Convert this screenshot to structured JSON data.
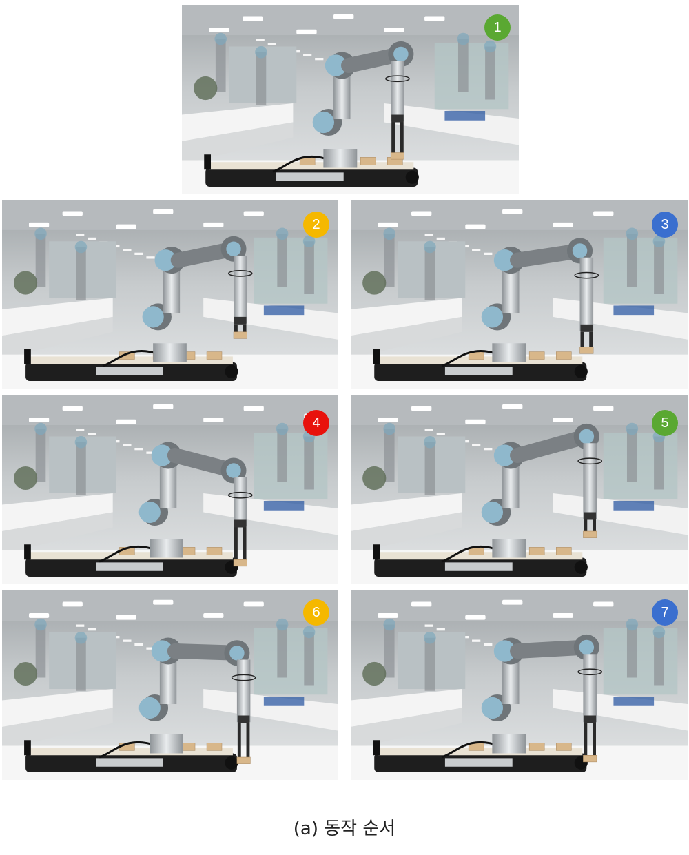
{
  "caption": "(a) 동작 순서",
  "panels": [
    {
      "number": "1",
      "badge_color": "#5aa832"
    },
    {
      "number": "2",
      "badge_color": "#f5b800"
    },
    {
      "number": "3",
      "badge_color": "#3a6fcf"
    },
    {
      "number": "4",
      "badge_color": "#e8120c"
    },
    {
      "number": "5",
      "badge_color": "#5aa832"
    },
    {
      "number": "6",
      "badge_color": "#f5b800"
    },
    {
      "number": "7",
      "badge_color": "#3a6fcf"
    }
  ]
}
